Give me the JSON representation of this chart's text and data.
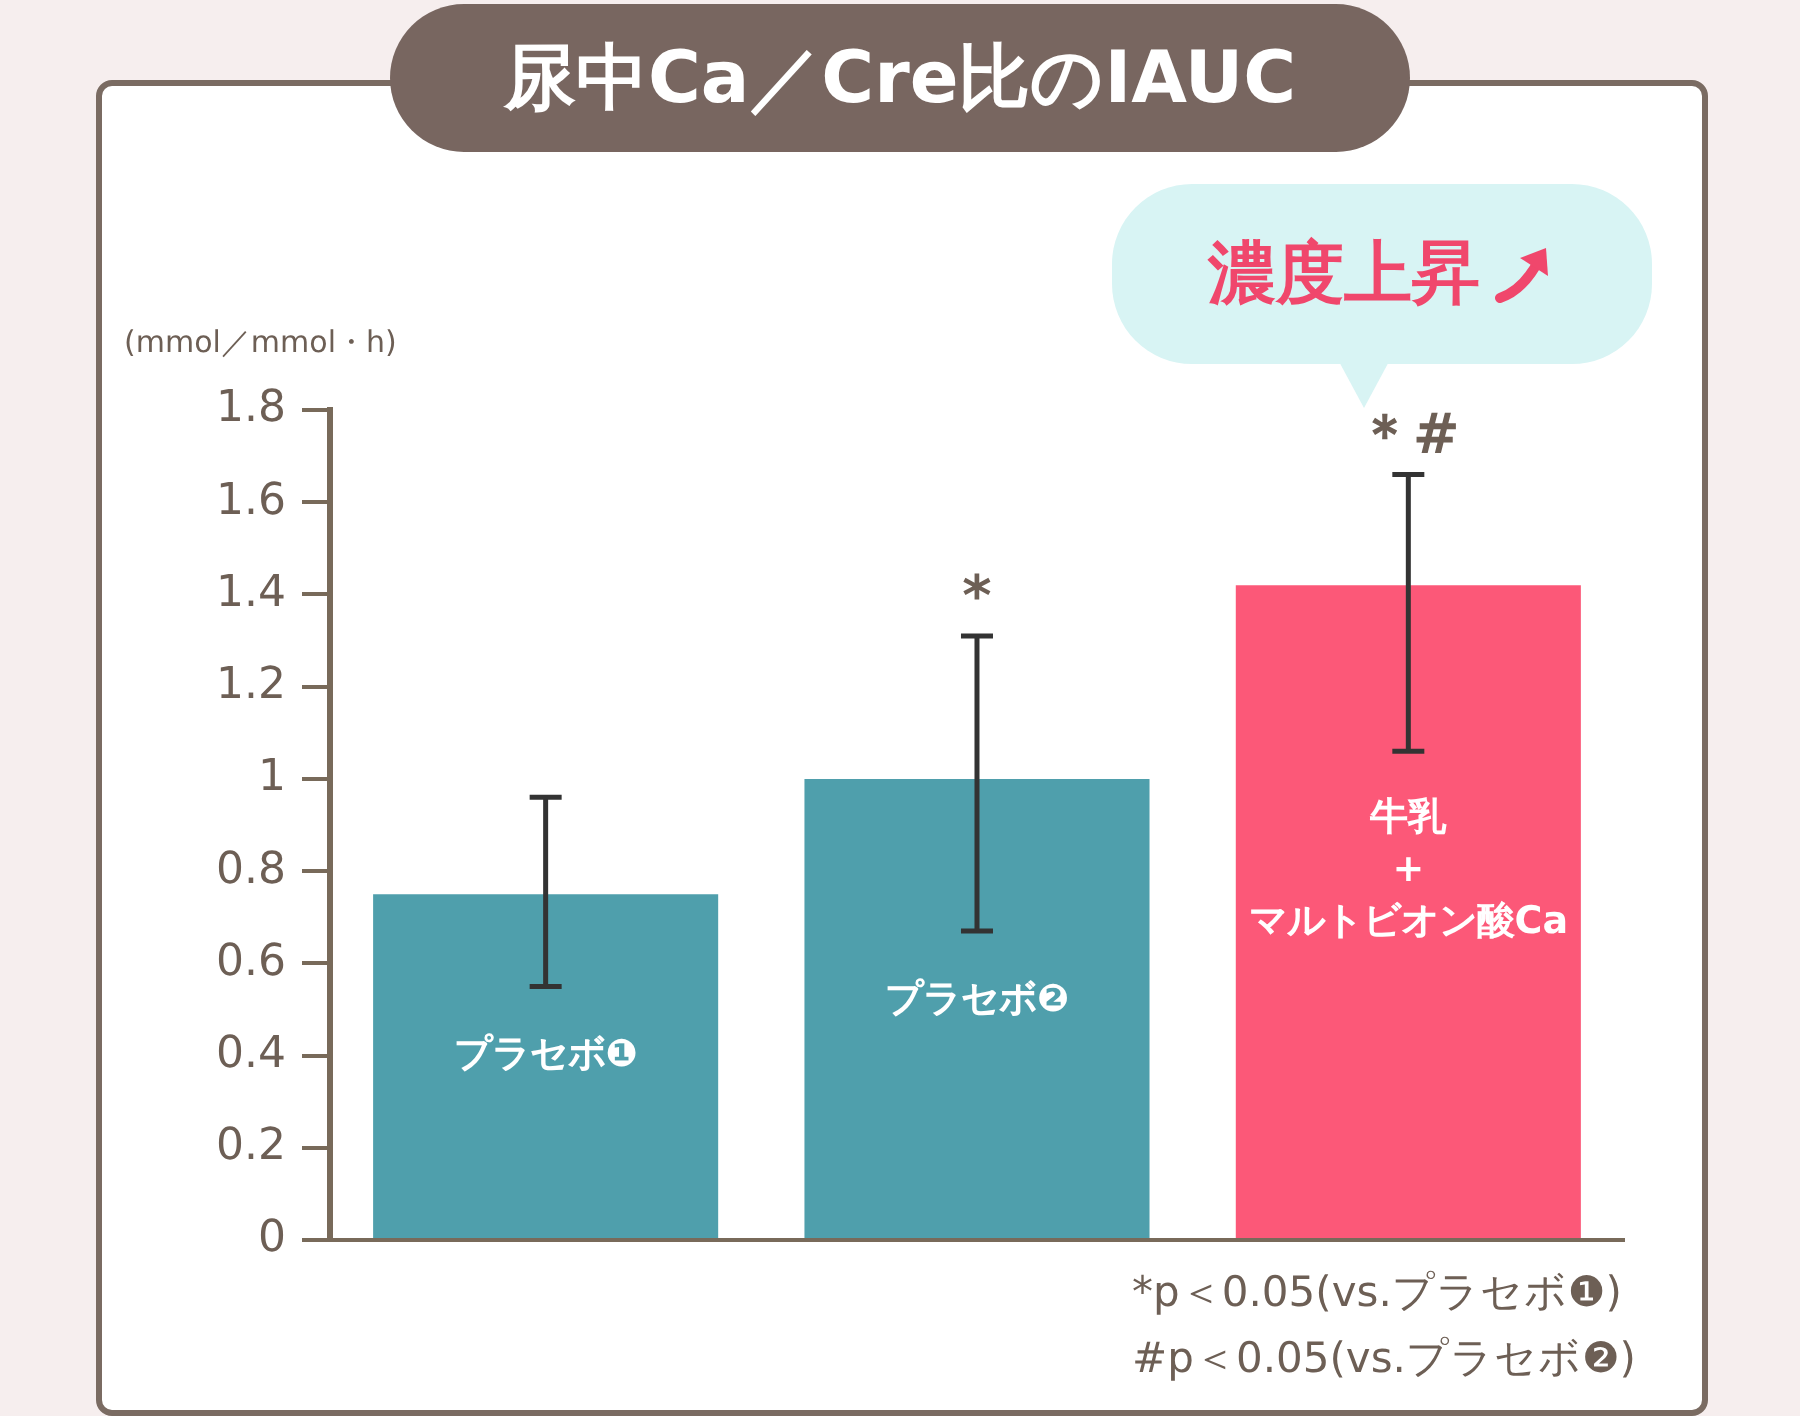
{
  "chart_data": {
    "type": "bar",
    "title": "尿中Ca／Cre比のIAUC",
    "ylabel": "(mmol／mmol・h)",
    "categories": [
      "プラセボ❶",
      "プラセボ❷",
      "牛乳\n+\nマルトビオン酸Ca"
    ],
    "values": [
      0.75,
      1.0,
      1.42
    ],
    "colors": [
      "#4f9fac",
      "#4f9fac",
      "#fc5878"
    ],
    "errors": [
      [
        0.55,
        0.96
      ],
      [
        0.67,
        1.31
      ],
      [
        1.06,
        1.66
      ]
    ],
    "ylim": [
      0,
      1.8
    ],
    "yticks": [
      0,
      0.2,
      0.4,
      0.6,
      0.8,
      1,
      1.2,
      1.4,
      1.6,
      1.8
    ],
    "grid": false,
    "legend": false,
    "tick_labels": "y",
    "annotations": [
      {
        "text": "*",
        "x": "プラセボ❷",
        "y": 1.31
      },
      {
        "text": "＊#",
        "x": "牛乳\n+\nマルトビオン酸Ca",
        "y": 1.66
      },
      "濃度上昇",
      "*p＜0.05(vs.プラセボ❶)\n#p＜0.05(vs.プラセボ❷)"
    ]
  }
}
